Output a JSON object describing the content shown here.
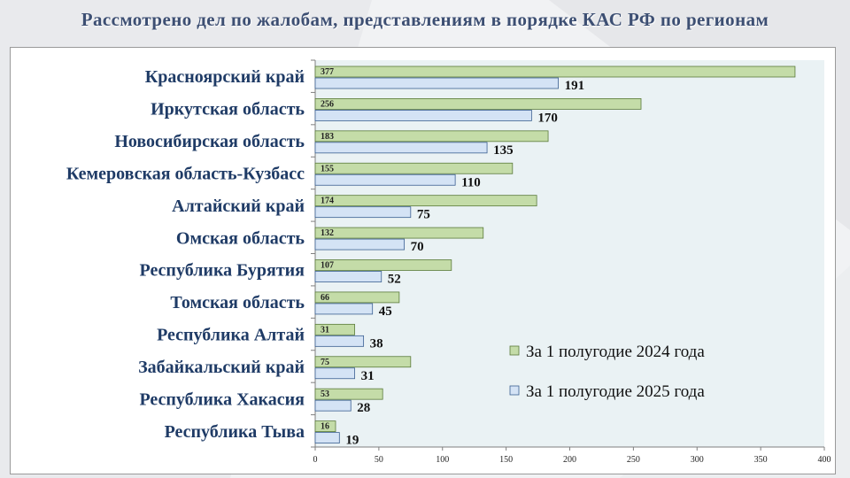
{
  "slide": {
    "title": "Рассмотрено дел по жалобам, представлениям в порядке КАС РФ по регионам"
  },
  "colors": {
    "series_2024": "#c4dca8",
    "series_2024_stroke": "#5a7a3a",
    "series_2025": "#d4e3f5",
    "series_2025_stroke": "#3a5f91",
    "plot_bg": "#eaf2f4",
    "category_text": "#1f3b66",
    "title_text": "#3d4f73"
  },
  "chart_data": {
    "type": "bar",
    "orientation": "horizontal",
    "title": "",
    "xlabel": "",
    "ylabel": "",
    "categories": [
      "Красноярский край",
      "Иркутская область",
      "Новосибирская область",
      "Кемеровская область-Кузбасс",
      "Алтайский край",
      "Омская область",
      "Республика Бурятия",
      "Томская область",
      "Республика Алтай",
      "Забайкальский край",
      "Республика Хакасия",
      "Республика Тыва"
    ],
    "series": [
      {
        "name": "За 1 полугодие 2024 года",
        "values": [
          377,
          256,
          183,
          155,
          174,
          132,
          107,
          66,
          31,
          75,
          53,
          16
        ]
      },
      {
        "name": "За 1 полугодие 2025 года",
        "values": [
          191,
          170,
          135,
          110,
          75,
          70,
          52,
          45,
          38,
          31,
          28,
          19
        ]
      }
    ],
    "xlim": [
      0,
      400
    ],
    "xticks": [
      0,
      50,
      100,
      150,
      200,
      250,
      300,
      350,
      400
    ],
    "grid": false,
    "data_labels": true,
    "legend_position": "right"
  }
}
